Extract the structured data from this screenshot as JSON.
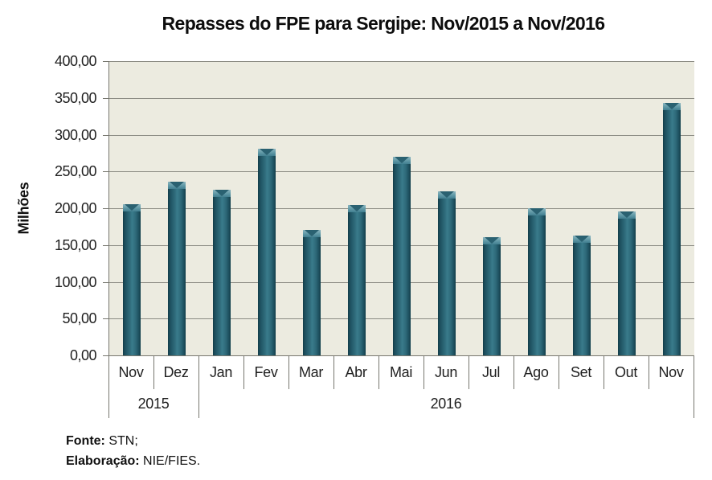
{
  "title": "Repasses do FPE para Sergipe: Nov/2015 a Nov/2016",
  "footer": {
    "fonte_label": "Fonte:",
    "fonte_value": "STN;",
    "elaboracao_label": "Elaboração:",
    "elaboracao_value": "NIE/FIES."
  },
  "chart_data": {
    "type": "bar",
    "title": "Repasses do FPE para Sergipe: Nov/2015 a Nov/2016",
    "xlabel": "",
    "ylabel": "Milhões",
    "ylim": [
      0,
      400
    ],
    "ytick_step": 50,
    "grid": true,
    "legend": false,
    "yticks": [
      {
        "value": 400,
        "label": "400,00"
      },
      {
        "value": 350,
        "label": "350,00"
      },
      {
        "value": 300,
        "label": "300,00"
      },
      {
        "value": 250,
        "label": "250,00"
      },
      {
        "value": 200,
        "label": "200,00"
      },
      {
        "value": 150,
        "label": "150,00"
      },
      {
        "value": 100,
        "label": "100,00"
      },
      {
        "value": 50,
        "label": "50,00"
      },
      {
        "value": 0,
        "label": "0,00"
      }
    ],
    "categories": [
      "Nov",
      "Dez",
      "Jan",
      "Fev",
      "Mar",
      "Abr",
      "Mai",
      "Jun",
      "Jul",
      "Ago",
      "Set",
      "Out",
      "Nov"
    ],
    "year_groups": [
      {
        "label": "2015",
        "span": 2
      },
      {
        "label": "2016",
        "span": 11
      }
    ],
    "values": [
      205,
      236,
      225,
      281,
      171,
      204,
      270,
      223,
      161,
      200,
      163,
      196,
      343
    ],
    "colors": {
      "bar_main": "#2E6A7A",
      "bar_edge": "#123D49",
      "bar_highlight": "#3A7B8B",
      "bar_cap": "#5F98A6",
      "plot_background": "#ECEBE0",
      "gridline": "#8C8C84",
      "axis": "#77776F"
    }
  }
}
